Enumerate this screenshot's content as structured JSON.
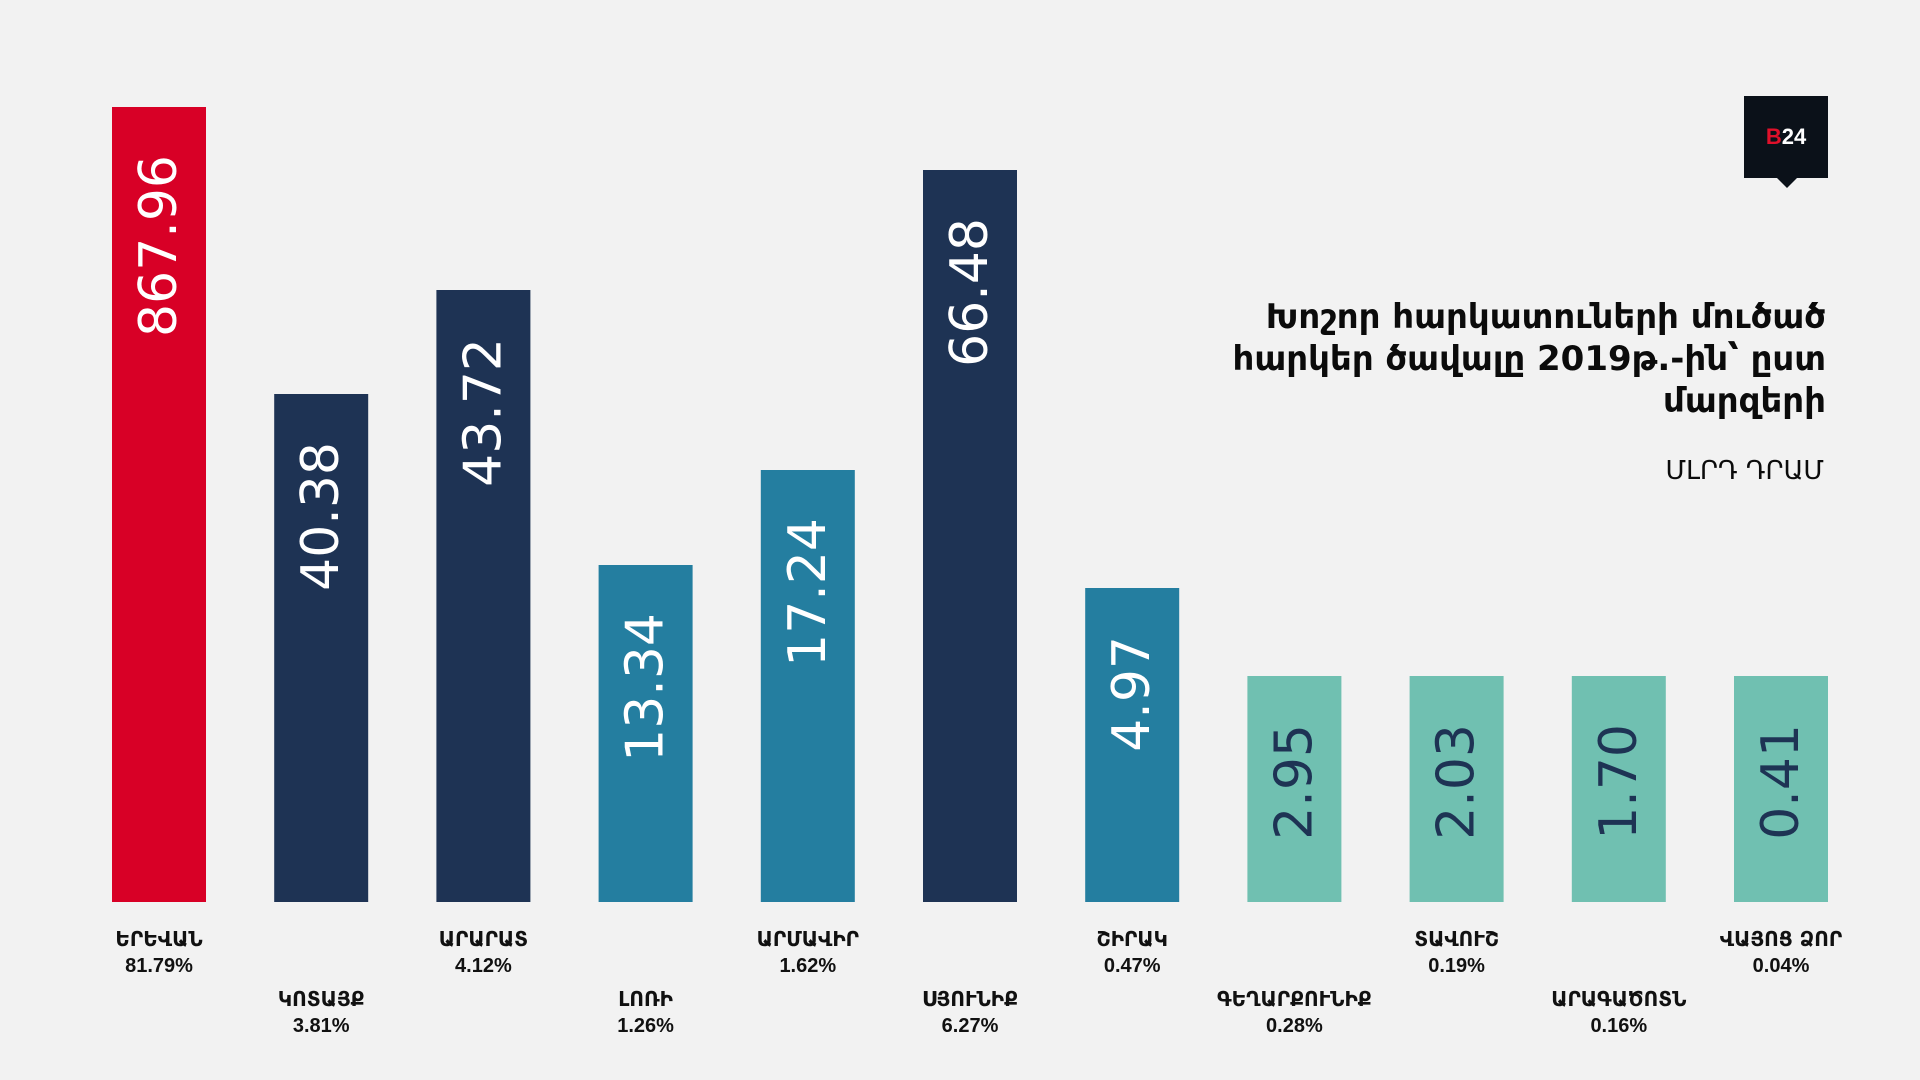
{
  "logo": {
    "letter": "B",
    "number": "24"
  },
  "title": "Խոշոր հարկատուների մուծած հարկեր ծավալը 2019թ.-ին՝ ըստ մարզերի",
  "unit": "ՄԼՐԴ ԴՐԱՄ",
  "colors": {
    "yerevan": "#d80026",
    "dark": "#1e3354",
    "medium": "#247ea0",
    "light": "#70c0b1",
    "label_white": "#ffffff",
    "label_dark": "#1e3354"
  },
  "chart_data": {
    "type": "bar",
    "title": "Խոշոր հարկատուների մուծած հարկեր ծավալը 2019թ.-ին՝ ըստ մարզերի",
    "ylabel": "ՄԼՐԴ ԴՐԱՄ",
    "categories": [
      "ԵՐԵՎԱՆ",
      "ԿՈՏԱՅՔ",
      "ԱՐԱՐԱՏ",
      "ԼՈՌԻ",
      "ԱՐՄԱՎԻՐ",
      "ՍՅՈՒՆԻՔ",
      "ՇԻՐԱԿ",
      "ԳԵՂԱՐՔՈՒՆԻՔ",
      "ՏԱՎՈՒՇ",
      "ԱՐԱԳԱԾՈՏՆ",
      "ՎԱՅՈՑ ՁՈՐ"
    ],
    "values": [
      867.96,
      40.38,
      43.72,
      13.34,
      17.24,
      66.48,
      4.97,
      2.95,
      2.03,
      1.7,
      0.41
    ],
    "value_labels": [
      "867.96",
      "40.38",
      "43.72",
      "13.34",
      "17.24",
      "66.48",
      "4.97",
      "2.95",
      "2.03",
      "1.70",
      "0.41"
    ],
    "percentages": [
      "81.79%",
      "3.81%",
      "4.12%",
      "1.26%",
      "1.62%",
      "6.27%",
      "0.47%",
      "0.28%",
      "0.19%",
      "0.16%",
      "0.04%"
    ],
    "color_groups": [
      "yerevan",
      "dark",
      "dark",
      "medium",
      "medium",
      "dark",
      "medium",
      "light",
      "light",
      "light",
      "light"
    ],
    "scale": "non-linear (bar heights not proportional to values)",
    "grid": false,
    "legend": "none"
  }
}
